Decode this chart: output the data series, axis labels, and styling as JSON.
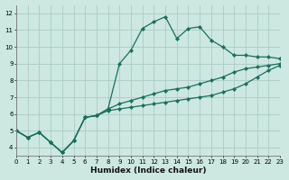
{
  "xlabel": "Humidex (Indice chaleur)",
  "background_color": "#cce8e0",
  "grid_color": "#aaccc4",
  "line_color": "#1a6e5e",
  "x": [
    0,
    1,
    2,
    3,
    4,
    5,
    6,
    7,
    8,
    9,
    10,
    11,
    12,
    13,
    14,
    15,
    16,
    17,
    18,
    19,
    20,
    21,
    22,
    23
  ],
  "y_top": [
    5.0,
    4.6,
    4.9,
    4.3,
    3.7,
    4.4,
    5.8,
    5.9,
    6.3,
    9.0,
    9.8,
    11.1,
    11.5,
    11.8,
    10.5,
    11.1,
    11.2,
    10.4,
    10.0,
    9.5,
    9.5,
    9.4,
    9.4,
    9.3
  ],
  "y_mid": [
    5.0,
    4.6,
    4.9,
    4.3,
    3.7,
    4.4,
    5.8,
    5.9,
    6.3,
    6.6,
    6.8,
    7.0,
    7.2,
    7.4,
    7.5,
    7.6,
    7.8,
    8.0,
    8.2,
    8.5,
    8.7,
    8.8,
    8.9,
    9.0
  ],
  "y_bot": [
    5.0,
    4.6,
    4.9,
    4.3,
    3.7,
    4.4,
    5.8,
    5.9,
    6.2,
    6.3,
    6.4,
    6.5,
    6.6,
    6.7,
    6.8,
    6.9,
    7.0,
    7.1,
    7.3,
    7.5,
    7.8,
    8.2,
    8.6,
    8.9
  ],
  "ylim": [
    3.5,
    12.5
  ],
  "xlim": [
    0,
    23
  ],
  "yticks": [
    4,
    5,
    6,
    7,
    8,
    9,
    10,
    11,
    12
  ],
  "xticks": [
    0,
    1,
    2,
    3,
    4,
    5,
    6,
    7,
    8,
    9,
    10,
    11,
    12,
    13,
    14,
    15,
    16,
    17,
    18,
    19,
    20,
    21,
    22,
    23
  ]
}
